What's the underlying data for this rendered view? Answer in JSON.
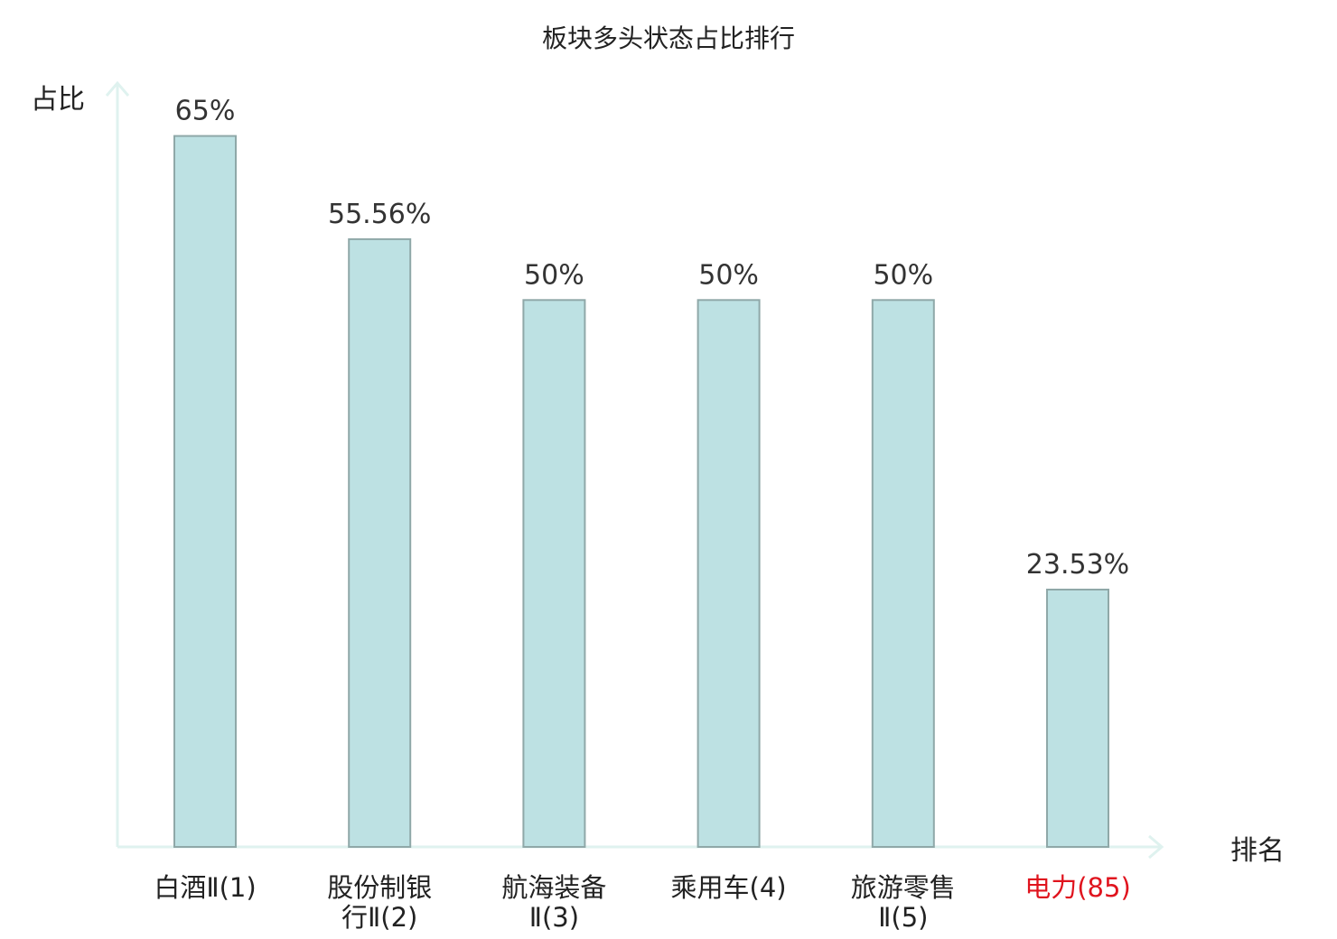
{
  "chart_data": {
    "type": "bar",
    "title": "板块多头状态占比排行",
    "ylabel": "占比",
    "xlabel": "排名",
    "ylim": [
      0,
      70
    ],
    "grid": false,
    "categories": [
      {
        "lines": [
          "白酒Ⅱ(1)"
        ],
        "highlight": false
      },
      {
        "lines": [
          "股份制银",
          "行Ⅱ(2)"
        ],
        "highlight": false
      },
      {
        "lines": [
          "航海装备",
          "Ⅱ(3)"
        ],
        "highlight": false
      },
      {
        "lines": [
          "乘用车(4)"
        ],
        "highlight": false
      },
      {
        "lines": [
          "旅游零售",
          "Ⅱ(5)"
        ],
        "highlight": false
      },
      {
        "lines": [
          "电力(85)"
        ],
        "highlight": true
      }
    ],
    "values": [
      65,
      55.56,
      50,
      50,
      50,
      23.53
    ],
    "value_labels": [
      "65%",
      "55.56%",
      "50%",
      "50%",
      "50%",
      "23.53%"
    ],
    "colors": {
      "bar_fill": "#bde1e3",
      "bar_stroke": "#8fa8a8",
      "axis": "#dff2ef",
      "highlight_label": "#e0141e"
    }
  }
}
